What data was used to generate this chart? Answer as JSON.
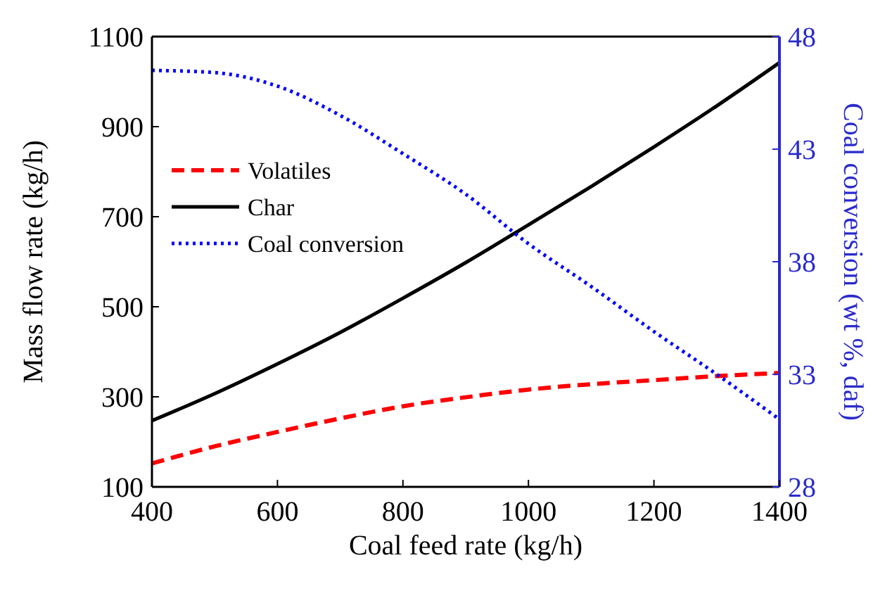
{
  "chart_data": {
    "type": "line",
    "xlabel": "Coal feed rate (kg/h)",
    "ylabel": "Mass flow rate (kg/h)",
    "y2label": "Coal conversion (wt %, daf)",
    "x": [
      400,
      500,
      600,
      700,
      800,
      900,
      1000,
      1100,
      1200,
      1300,
      1400
    ],
    "xlim": [
      400,
      1400
    ],
    "xticks": [
      400,
      600,
      800,
      1000,
      1200,
      1400
    ],
    "ylim": [
      100,
      1100
    ],
    "yticks": [
      100,
      300,
      500,
      700,
      900,
      1100
    ],
    "y2lim": [
      28,
      48
    ],
    "y2ticks": [
      28,
      33,
      38,
      43,
      48
    ],
    "legend": "top left",
    "grid": false,
    "series": [
      {
        "name": "Volatiles",
        "color": "#ff0000",
        "line_style": "dashed",
        "values": [
          152,
          190,
          222,
          252,
          279,
          299,
          316,
          328,
          337,
          346,
          353
        ]
      },
      {
        "name": "Char",
        "color": "#000000",
        "line_style": "solid",
        "values": [
          247,
          307,
          373,
          443,
          519,
          598,
          682,
          767,
          855,
          946,
          1042
        ]
      },
      {
        "name": "Coal conversion",
        "color": "#0000ff",
        "line_style": "dotted",
        "axis": "y2",
        "values": [
          46.5,
          46.4,
          45.8,
          44.5,
          42.8,
          41.0,
          38.8,
          36.9,
          34.9,
          33.0,
          31.0
        ]
      }
    ]
  }
}
